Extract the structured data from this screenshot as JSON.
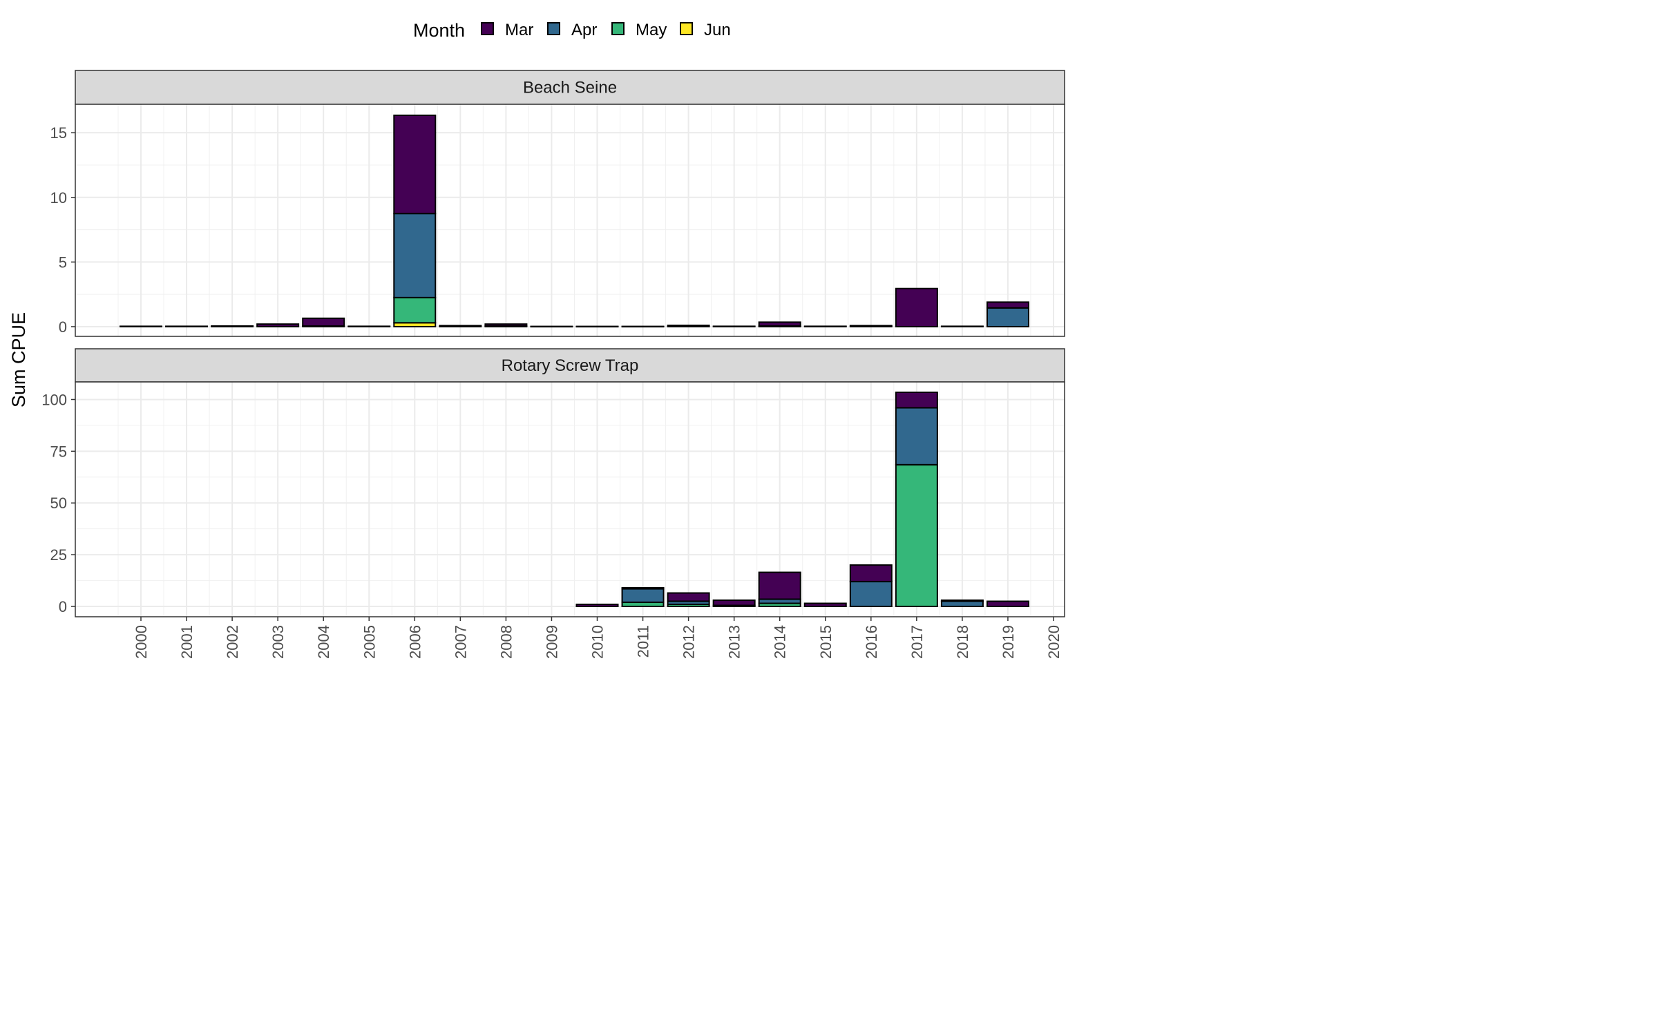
{
  "chart_data": {
    "type": "bar",
    "stacked": true,
    "ylabel": "Sum CPUE",
    "legend": {
      "title": "Month",
      "position": "top",
      "entries": [
        {
          "label": "Mar",
          "color": "#440154"
        },
        {
          "label": "Apr",
          "color": "#31688E"
        },
        {
          "label": "May",
          "color": "#35B779"
        },
        {
          "label": "Jun",
          "color": "#FDE725"
        }
      ]
    },
    "x_ticks": [
      "2000",
      "2001",
      "2002",
      "2003",
      "2004",
      "2005",
      "2006",
      "2007",
      "2008",
      "2009",
      "2010",
      "2011",
      "2012",
      "2013",
      "2014",
      "2015",
      "2016",
      "2017",
      "2018",
      "2019",
      "2020"
    ],
    "stack_order": [
      "Jun",
      "May",
      "Apr",
      "Mar"
    ],
    "grid": true,
    "facets": [
      {
        "title": "Beach Seine",
        "ylim": [
          -0.75,
          17.2
        ],
        "yticks": [
          0,
          5,
          10,
          15
        ],
        "bars": [
          {
            "x": "2000",
            "Mar": 0.03
          },
          {
            "x": "2001",
            "Mar": 0.03
          },
          {
            "x": "2002",
            "Mar": 0.05
          },
          {
            "x": "2003",
            "Mar": 0.2
          },
          {
            "x": "2004",
            "Mar": 0.6,
            "Apr": 0.05
          },
          {
            "x": "2005",
            "Mar": 0.03
          },
          {
            "x": "2006",
            "Mar": 7.6,
            "Apr": 6.5,
            "May": 1.95,
            "Jun": 0.3
          },
          {
            "x": "2007",
            "Mar": 0.08
          },
          {
            "x": "2008",
            "Mar": 0.15,
            "Apr": 0.05
          },
          {
            "x": "2009",
            "Mar": 0.02
          },
          {
            "x": "2010",
            "Mar": 0.02
          },
          {
            "x": "2011",
            "Mar": 0.02
          },
          {
            "x": "2012",
            "Mar": 0.1
          },
          {
            "x": "2013",
            "Mar": 0.03
          },
          {
            "x": "2014",
            "Mar": 0.3,
            "Apr": 0.05
          },
          {
            "x": "2015",
            "Mar": 0.03
          },
          {
            "x": "2016",
            "Mar": 0.08
          },
          {
            "x": "2017",
            "Mar": 2.95
          },
          {
            "x": "2018",
            "Mar": 0.03
          },
          {
            "x": "2019",
            "Mar": 0.45,
            "Apr": 1.45
          }
        ]
      },
      {
        "title": "Rotary Screw Trap",
        "ylim": [
          -5,
          108.5
        ],
        "yticks": [
          0,
          25,
          50,
          75,
          100
        ],
        "bars": [
          {
            "x": "2010",
            "Mar": 1
          },
          {
            "x": "2011",
            "Mar": 0.5,
            "Apr": 6.5,
            "May": 2
          },
          {
            "x": "2012",
            "Mar": 4,
            "Apr": 1.5,
            "May": 1
          },
          {
            "x": "2013",
            "Mar": 2.5,
            "Apr": 0.5
          },
          {
            "x": "2014",
            "Mar": 13,
            "Apr": 2,
            "May": 1.5
          },
          {
            "x": "2015",
            "Mar": 1.5
          },
          {
            "x": "2016",
            "Mar": 8,
            "Apr": 12
          },
          {
            "x": "2017",
            "Mar": 7.5,
            "Apr": 27.5,
            "May": 68.5
          },
          {
            "x": "2018",
            "Mar": 0.5,
            "Apr": 2.5
          },
          {
            "x": "2019",
            "Mar": 2.5
          }
        ]
      }
    ]
  }
}
